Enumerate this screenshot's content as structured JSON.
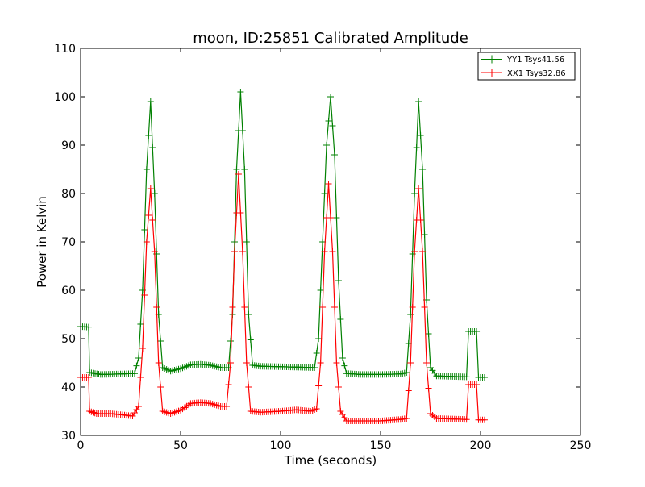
{
  "chart_data": {
    "type": "line",
    "title": "moon, ID:25851 Calibrated Amplitude",
    "xlabel": "Time (seconds)",
    "ylabel": "Power in Kelvin",
    "xlim": [
      0,
      250
    ],
    "ylim": [
      30,
      110
    ],
    "xticks": [
      0,
      50,
      100,
      150,
      200,
      250
    ],
    "yticks": [
      30,
      40,
      50,
      60,
      70,
      80,
      90,
      100,
      110
    ],
    "grid": false,
    "legend_position": "top-right",
    "marker": "+",
    "series": [
      {
        "name": "YY1 Tsys41.56",
        "color": "#008000",
        "points": [
          [
            0,
            52.5
          ],
          [
            4,
            52.4
          ],
          [
            4.5,
            43
          ],
          [
            10,
            42.6
          ],
          [
            20,
            42.7
          ],
          [
            27,
            42.8
          ],
          [
            29,
            46
          ],
          [
            31,
            60
          ],
          [
            33,
            85
          ],
          [
            35,
            99
          ],
          [
            37,
            80
          ],
          [
            39,
            55
          ],
          [
            41,
            44
          ],
          [
            45,
            43.3
          ],
          [
            50,
            43.8
          ],
          [
            55,
            44.6
          ],
          [
            60,
            44.7
          ],
          [
            65,
            44.5
          ],
          [
            70,
            44
          ],
          [
            74,
            44
          ],
          [
            76,
            55
          ],
          [
            78,
            85
          ],
          [
            80,
            101
          ],
          [
            82,
            85
          ],
          [
            84,
            55
          ],
          [
            86,
            44.5
          ],
          [
            90,
            44.3
          ],
          [
            100,
            44.2
          ],
          [
            110,
            44.1
          ],
          [
            117,
            44
          ],
          [
            119,
            50
          ],
          [
            121,
            70
          ],
          [
            123,
            90
          ],
          [
            125,
            100
          ],
          [
            127,
            88
          ],
          [
            129,
            62
          ],
          [
            131,
            46
          ],
          [
            133,
            42.8
          ],
          [
            140,
            42.6
          ],
          [
            150,
            42.6
          ],
          [
            160,
            42.7
          ],
          [
            163,
            43
          ],
          [
            165,
            55
          ],
          [
            167,
            80
          ],
          [
            169,
            99
          ],
          [
            171,
            85
          ],
          [
            173,
            58
          ],
          [
            175,
            44
          ],
          [
            178,
            42.3
          ],
          [
            185,
            42.2
          ],
          [
            193,
            42.1
          ],
          [
            194,
            51.5
          ],
          [
            198,
            51.5
          ],
          [
            199,
            42
          ],
          [
            202,
            42
          ]
        ]
      },
      {
        "name": "XX1 Tsys32.86",
        "color": "#ff0000",
        "points": [
          [
            0,
            42
          ],
          [
            4,
            42
          ],
          [
            4.5,
            35
          ],
          [
            8,
            34.5
          ],
          [
            15,
            34.5
          ],
          [
            20,
            34.3
          ],
          [
            26,
            34
          ],
          [
            29,
            36
          ],
          [
            31,
            48
          ],
          [
            33,
            70
          ],
          [
            35,
            81
          ],
          [
            37,
            68
          ],
          [
            39,
            45
          ],
          [
            41,
            35
          ],
          [
            45,
            34.5
          ],
          [
            50,
            35.2
          ],
          [
            55,
            36.6
          ],
          [
            60,
            36.8
          ],
          [
            65,
            36.6
          ],
          [
            70,
            36
          ],
          [
            73,
            36
          ],
          [
            75,
            45
          ],
          [
            77,
            68
          ],
          [
            79,
            84
          ],
          [
            81,
            68
          ],
          [
            83,
            45
          ],
          [
            85,
            35
          ],
          [
            90,
            34.8
          ],
          [
            100,
            35
          ],
          [
            108,
            35.3
          ],
          [
            115,
            35
          ],
          [
            118,
            35.5
          ],
          [
            120,
            45
          ],
          [
            122,
            68
          ],
          [
            124,
            82
          ],
          [
            126,
            68
          ],
          [
            128,
            45
          ],
          [
            130,
            35
          ],
          [
            133,
            33
          ],
          [
            140,
            33
          ],
          [
            150,
            33
          ],
          [
            160,
            33.3
          ],
          [
            163,
            33.5
          ],
          [
            165,
            45
          ],
          [
            167,
            68
          ],
          [
            169,
            81
          ],
          [
            171,
            68
          ],
          [
            173,
            45
          ],
          [
            175,
            34.5
          ],
          [
            178,
            33.5
          ],
          [
            185,
            33.4
          ],
          [
            193,
            33.3
          ],
          [
            194,
            40.5
          ],
          [
            198,
            40.5
          ],
          [
            199,
            33.2
          ],
          [
            202,
            33.2
          ]
        ]
      }
    ]
  }
}
